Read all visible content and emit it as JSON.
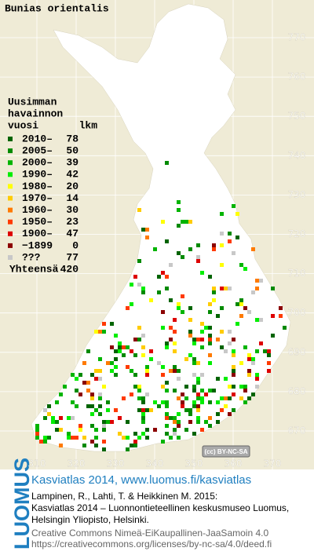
{
  "title": "Bunias orientalis",
  "legend": {
    "header": [
      "Uusimman",
      "havainnon",
      "vuosi"
    ],
    "count_header": "lkm",
    "rows": [
      {
        "label": "2010–",
        "count": 78,
        "color": "#006400"
      },
      {
        "label": "2005–",
        "count": 50,
        "color": "#008a00"
      },
      {
        "label": "2000–",
        "count": 39,
        "color": "#00b400"
      },
      {
        "label": "1990–",
        "count": 42,
        "color": "#00ee00"
      },
      {
        "label": "1980–",
        "count": 20,
        "color": "#ffff00"
      },
      {
        "label": "1970–",
        "count": 14,
        "color": "#ffcc00"
      },
      {
        "label": "1960–",
        "count": 30,
        "color": "#ff7a00"
      },
      {
        "label": "1950–",
        "count": 23,
        "color": "#ff3a00"
      },
      {
        "label": "1900–",
        "count": 47,
        "color": "#dd0000"
      },
      {
        "label": "−1899",
        "count": 0,
        "color": "#8b0000"
      },
      {
        "label": "???",
        "count": 77,
        "color": "#c8c8c8"
      }
    ],
    "total_label": "Yhteensä",
    "total": 420
  },
  "map": {
    "yticks": [
      770,
      760,
      750,
      740,
      730,
      720,
      710,
      700,
      690,
      680,
      670
    ],
    "xticks": [
      310,
      320,
      330,
      340,
      350,
      360,
      370
    ],
    "license_badge": "(cc) BY-NC-SA"
  },
  "footer": {
    "brand": "LUOMUS",
    "link": "Kasviatlas 2014, www.luomus.fi/kasviatlas",
    "citation": [
      "Lampinen, R., Lahti, T. & Heikkinen M. 2015:",
      "Kasviatlas 2014 – Luonnontieteellinen keskusmuseo Luomus,",
      "Helsingin Yliopisto, Helsinki."
    ],
    "license": [
      "Creative Commons Nimeä-EiKaupallinen-JaaSamoin 4.0",
      "https://creativecommons.org/licenses/by-nc-sa/4.0/deed.fi"
    ]
  }
}
